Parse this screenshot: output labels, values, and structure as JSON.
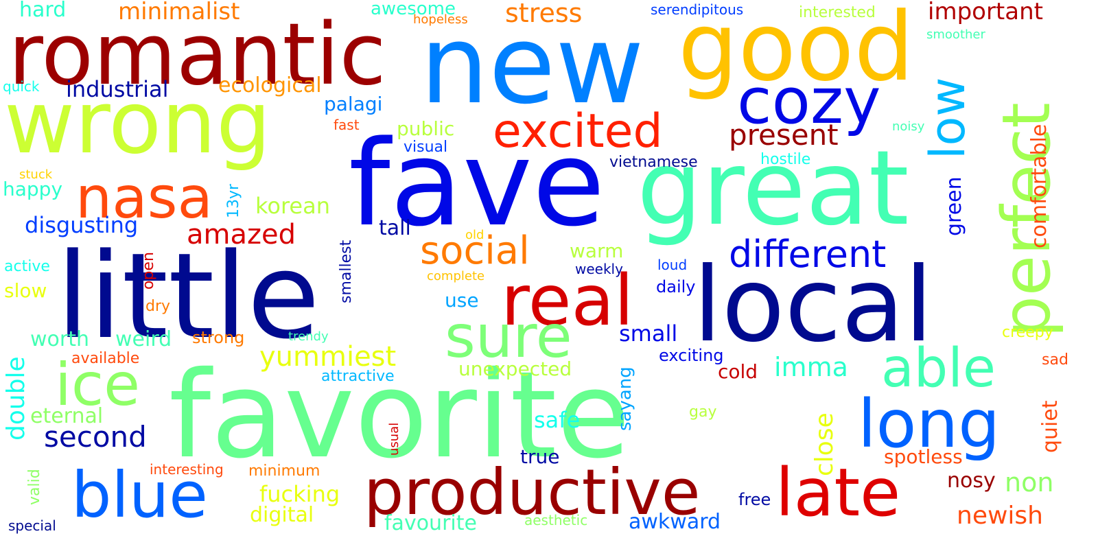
{
  "words": [
    {
      "text": "favorite",
      "color": "#66ff8f"
    },
    {
      "text": "little",
      "color": "#000a8f"
    },
    {
      "text": "fave",
      "color": "#0008e6"
    },
    {
      "text": "new",
      "color": "#0080ff"
    },
    {
      "text": "romantic",
      "color": "#9c0000"
    },
    {
      "text": "wrong",
      "color": "#ccff33"
    },
    {
      "text": "good",
      "color": "#ffc200"
    },
    {
      "text": "great",
      "color": "#43ffb3"
    },
    {
      "text": "local",
      "color": "#000a8f"
    },
    {
      "text": "productive",
      "color": "#990000"
    },
    {
      "text": "real",
      "color": "#d60000"
    },
    {
      "text": "late",
      "color": "#de0000"
    },
    {
      "text": "blue",
      "color": "#0062ff"
    },
    {
      "text": "cozy",
      "color": "#0008e6"
    },
    {
      "text": "nasa",
      "color": "#ff4a0d"
    },
    {
      "text": "ice",
      "color": "#8fff66"
    },
    {
      "text": "sure",
      "color": "#7dff78"
    },
    {
      "text": "long",
      "color": "#0062ff"
    },
    {
      "text": "able",
      "color": "#43ffb3"
    },
    {
      "text": "excited",
      "color": "#ff2000"
    },
    {
      "text": "perfect",
      "color": "#a3ff52"
    },
    {
      "text": "social",
      "color": "#ff7a00"
    },
    {
      "text": "different",
      "color": "#0008e6"
    },
    {
      "text": "low",
      "color": "#00b8ff"
    },
    {
      "text": "present",
      "color": "#990000"
    },
    {
      "text": "second",
      "color": "#000aa3"
    },
    {
      "text": "yummiest",
      "color": "#e8ff0f"
    },
    {
      "text": "amazed",
      "color": "#d60000"
    },
    {
      "text": "stress",
      "color": "#ff7a00"
    },
    {
      "text": "minimalist",
      "color": "#ff7a00"
    },
    {
      "text": "important",
      "color": "#b00000"
    },
    {
      "text": "industrial",
      "color": "#000aa3"
    },
    {
      "text": "ecological",
      "color": "#ff9400"
    },
    {
      "text": "disgusting",
      "color": "#003dff"
    },
    {
      "text": "korean",
      "color": "#b8ff3d"
    },
    {
      "text": "worth",
      "color": "#43ffb3"
    },
    {
      "text": "weird",
      "color": "#43ffb3"
    },
    {
      "text": "newish",
      "color": "#ff4a0d"
    },
    {
      "text": "fucking",
      "color": "#e8ff0f"
    },
    {
      "text": "imma",
      "color": "#29ffcc"
    },
    {
      "text": "comfortable",
      "color": "#ff4a0d"
    },
    {
      "text": "double",
      "color": "#14ffeb"
    },
    {
      "text": "palagi",
      "color": "#007fff"
    },
    {
      "text": "public",
      "color": "#b8ff3d"
    },
    {
      "text": "unexpected",
      "color": "#b8ff3d"
    },
    {
      "text": "tall",
      "color": "#000aa3"
    },
    {
      "text": "warm",
      "color": "#b8ff3d"
    },
    {
      "text": "happy",
      "color": "#29ffcc"
    },
    {
      "text": "small",
      "color": "#0008e6"
    },
    {
      "text": "safe",
      "color": "#14ffeb"
    },
    {
      "text": "eternal",
      "color": "#8fff66"
    },
    {
      "text": "cold",
      "color": "#c60000"
    },
    {
      "text": "green",
      "color": "#0008e6"
    },
    {
      "text": "close",
      "color": "#e8ff0f"
    },
    {
      "text": "non",
      "color": "#8fff66"
    },
    {
      "text": "quiet",
      "color": "#ff4a0d"
    },
    {
      "text": "hard",
      "color": "#29ffcc"
    },
    {
      "text": "awesome",
      "color": "#29ffcc"
    },
    {
      "text": "spotless",
      "color": "#ff4a0d"
    },
    {
      "text": "nosy",
      "color": "#990000"
    },
    {
      "text": "awkward",
      "color": "#0062ff"
    },
    {
      "text": "favourite",
      "color": "#43ffb3"
    },
    {
      "text": "digital",
      "color": "#e8ff0f"
    },
    {
      "text": "minimum",
      "color": "#ff7a00"
    },
    {
      "text": "true",
      "color": "#000aa3"
    },
    {
      "text": "slow",
      "color": "#e8ff0f"
    },
    {
      "text": "use",
      "color": "#00a4ff"
    },
    {
      "text": "sayang",
      "color": "#00a4ff"
    },
    {
      "text": "attractive",
      "color": "#00b8ff"
    },
    {
      "text": "available",
      "color": "#ff4a0d"
    },
    {
      "text": "strong",
      "color": "#ff7a00"
    },
    {
      "text": "exciting",
      "color": "#0008e6"
    },
    {
      "text": "daily",
      "color": "#0008e6"
    },
    {
      "text": "visual",
      "color": "#003dff"
    },
    {
      "text": "vietnamese",
      "color": "#000a8f"
    },
    {
      "text": "hostile",
      "color": "#14ffeb"
    },
    {
      "text": "serendipitous",
      "color": "#003dff"
    },
    {
      "text": "interested",
      "color": "#b8ff3d"
    },
    {
      "text": "smoother",
      "color": "#43ffb3"
    },
    {
      "text": "quick",
      "color": "#14ffeb"
    },
    {
      "text": "fast",
      "color": "#ff4a0d"
    },
    {
      "text": "hopeless",
      "color": "#ff7a00"
    },
    {
      "text": "noisy",
      "color": "#43ffb3"
    },
    {
      "text": "stuck",
      "color": "#ffd200"
    },
    {
      "text": "13yr",
      "color": "#00b8ff"
    },
    {
      "text": "active",
      "color": "#14ffeb"
    },
    {
      "text": "smallest",
      "color": "#000aa3"
    },
    {
      "text": "open",
      "color": "#d60000"
    },
    {
      "text": "old",
      "color": "#ffd200"
    },
    {
      "text": "complete",
      "color": "#ffc200"
    },
    {
      "text": "weekly",
      "color": "#000aa3"
    },
    {
      "text": "loud",
      "color": "#003dff"
    },
    {
      "text": "dry",
      "color": "#ff7a00"
    },
    {
      "text": "trendy",
      "color": "#43ffb3"
    },
    {
      "text": "creepy",
      "color": "#e8ff0f"
    },
    {
      "text": "sad",
      "color": "#ff4a0d"
    },
    {
      "text": "gay",
      "color": "#b8ff3d"
    },
    {
      "text": "usual",
      "color": "#d60000"
    },
    {
      "text": "valid",
      "color": "#8fff66"
    },
    {
      "text": "interesting",
      "color": "#ff4a0d"
    },
    {
      "text": "free",
      "color": "#000aa3"
    },
    {
      "text": "aesthetic",
      "color": "#8fff66"
    },
    {
      "text": "special",
      "color": "#000a8f"
    }
  ]
}
